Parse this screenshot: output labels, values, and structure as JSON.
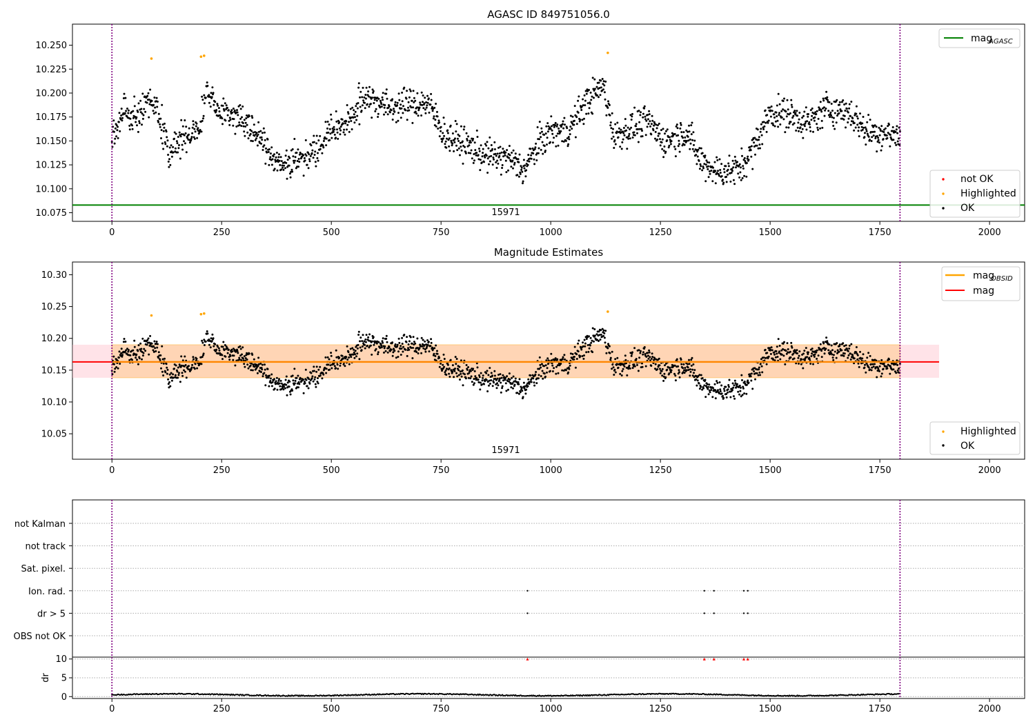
{
  "chart_data": [
    {
      "type": "scatter",
      "title": "AGASC ID 849751056.0",
      "xlabel": "",
      "ylabel": "",
      "xlim": [
        -90,
        2080
      ],
      "ylim": [
        10.066,
        10.272
      ],
      "x_ticks": [
        "0",
        "250",
        "500",
        "750",
        "1000",
        "1250",
        "1500",
        "1750",
        "2000"
      ],
      "y_ticks": [
        "10.075",
        "10.100",
        "10.125",
        "10.150",
        "10.175",
        "10.200",
        "10.225",
        "10.250"
      ],
      "obsid_label": "15971",
      "obs_bounds": [
        0,
        1796
      ],
      "legend_lines": [
        {
          "name": "mag",
          "sub": "AGASC",
          "color": "#008000"
        }
      ],
      "legend_points": [
        {
          "name": "not OK",
          "color": "#ff0000"
        },
        {
          "name": "Highlighted",
          "color": "#ffa500"
        },
        {
          "name": "OK",
          "color": "#000000"
        }
      ],
      "hlines": [
        {
          "y": 10.083,
          "color": "#008000"
        }
      ],
      "series": [
        {
          "role": "OK",
          "color": "#000000",
          "generated": true,
          "n": 1797
        },
        {
          "role": "Highlighted",
          "color": "#ffa500",
          "points": [
            [
              90,
              10.236
            ],
            [
              203,
              10.238
            ],
            [
              210,
              10.239
            ],
            [
              1130,
              10.242
            ]
          ]
        }
      ]
    },
    {
      "type": "scatter",
      "title": "Magnitude Estimates",
      "xlabel": "",
      "ylabel": "",
      "xlim": [
        -90,
        2080
      ],
      "ylim": [
        10.01,
        10.32
      ],
      "x_ticks": [
        "0",
        "250",
        "500",
        "750",
        "1000",
        "1250",
        "1500",
        "1750",
        "2000"
      ],
      "y_ticks": [
        "10.05",
        "10.10",
        "10.15",
        "10.20",
        "10.25",
        "10.30"
      ],
      "obsid_label": "15971",
      "obs_bounds": [
        0,
        1796
      ],
      "legend_lines": [
        {
          "name": "mag",
          "sub": "OBSID",
          "color": "#ffa500"
        },
        {
          "name": "mag",
          "sub": "",
          "color": "#ff0000"
        }
      ],
      "legend_points": [
        {
          "name": "Highlighted",
          "color": "#ffa500"
        },
        {
          "name": "OK",
          "color": "#000000"
        }
      ],
      "mag_mean": 10.163,
      "mag_band": [
        10.138,
        10.19
      ],
      "band_end": 1885,
      "series": [
        {
          "role": "OK",
          "color": "#000000",
          "generated": true,
          "n": 1797
        },
        {
          "role": "Highlighted",
          "color": "#ffa500",
          "points": [
            [
              90,
              10.236
            ],
            [
              203,
              10.238
            ],
            [
              210,
              10.239
            ],
            [
              1130,
              10.242
            ]
          ]
        }
      ]
    },
    {
      "type": "scatter",
      "title": "",
      "xlim": [
        -90,
        2080
      ],
      "flag_labels": [
        "not Kalman",
        "not track",
        "Sat. pixel.",
        "Ion. rad.",
        "dr > 5",
        "OBS not OK"
      ],
      "flag_events": {
        "Ion. rad.": [
          947,
          1350,
          1372,
          1440,
          1449
        ],
        "dr > 5": [
          947,
          1350,
          1372,
          1440,
          1449
        ]
      },
      "dr_ylabel": "dr",
      "dr_ticks": [
        "0",
        "5",
        "10"
      ],
      "dr_ylim": [
        -0.5,
        10.5
      ],
      "dr_clip_markers": [
        947,
        1350,
        1372,
        1440,
        1449
      ],
      "x_ticks": [
        "0",
        "250",
        "500",
        "750",
        "1000",
        "1250",
        "1500",
        "1750",
        "2000"
      ],
      "obs_bounds": [
        0,
        1796
      ]
    }
  ]
}
